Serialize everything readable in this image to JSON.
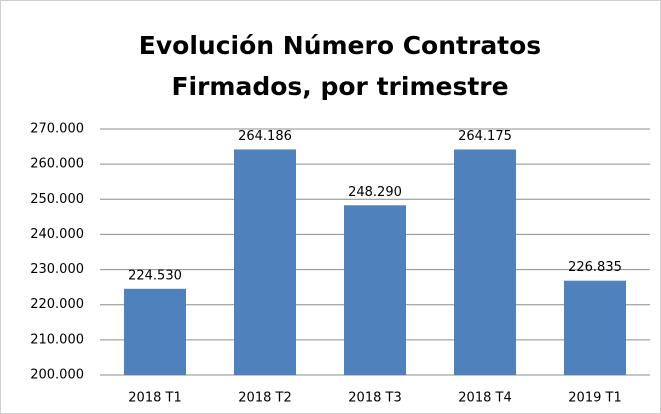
{
  "chart_data": {
    "type": "bar",
    "title": [
      "Evolución Número Contratos",
      "Firmados, por trimestre"
    ],
    "categories": [
      "2018 T1",
      "2018 T2",
      "2018 T3",
      "2018 T4",
      "2019 T1"
    ],
    "values": [
      224530,
      264186,
      248290,
      264175,
      226835
    ],
    "value_labels": [
      "224.530",
      "264.186",
      "248.290",
      "264.175",
      "226.835"
    ],
    "color": "#4f81bd",
    "ylim": [
      200000,
      270000
    ],
    "yticks": [
      {
        "value": 200000,
        "label": "200.000"
      },
      {
        "value": 210000,
        "label": "210.000"
      },
      {
        "value": 220000,
        "label": "220.000"
      },
      {
        "value": 230000,
        "label": "230.000"
      },
      {
        "value": 240000,
        "label": "240.000"
      },
      {
        "value": 250000,
        "label": "250.000"
      },
      {
        "value": 260000,
        "label": "260.000"
      },
      {
        "value": 270000,
        "label": "270.000"
      }
    ],
    "grid": true
  }
}
